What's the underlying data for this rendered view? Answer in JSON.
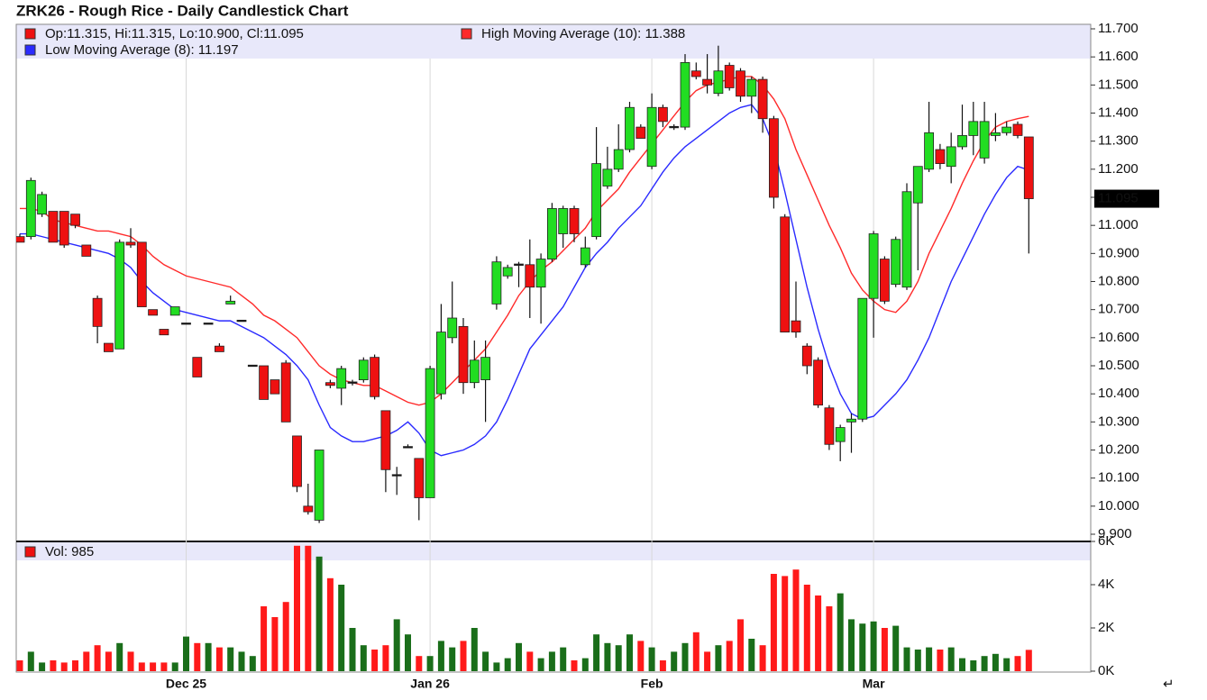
{
  "chart_data": {
    "type": "candlestick",
    "title": "ZRK26 - Rough Rice - Daily Candlestick Chart",
    "ohlc_label": "Op:11.315, Hi:11.315, Lo:10.900, Cl:11.095",
    "categories": [
      null,
      null,
      null,
      null,
      null,
      null,
      null,
      null,
      null,
      null,
      null,
      null,
      null,
      null,
      null,
      "Dec 25",
      null,
      null,
      null,
      null,
      null,
      null,
      null,
      null,
      null,
      null,
      null,
      null,
      null,
      null,
      null,
      null,
      null,
      null,
      null,
      null,
      null,
      "Jan 26",
      null,
      null,
      null,
      null,
      null,
      null,
      null,
      null,
      null,
      null,
      null,
      null,
      null,
      null,
      null,
      null,
      null,
      null,
      null,
      "Feb",
      null,
      null,
      null,
      null,
      null,
      null,
      null,
      null,
      null,
      null,
      null,
      null,
      null,
      null,
      null,
      null,
      null,
      null,
      null,
      "Mar",
      null,
      null,
      null,
      null,
      null,
      null,
      null,
      null,
      null,
      null,
      null,
      null,
      null,
      null
    ],
    "open": [
      10.96,
      10.96,
      11.04,
      11.05,
      11.05,
      11.04,
      10.93,
      10.74,
      10.58,
      10.56,
      10.94,
      10.94,
      10.7,
      10.63,
      10.68,
      10.65,
      10.53,
      10.65,
      10.57,
      10.72,
      10.66,
      10.5,
      10.5,
      10.45,
      10.51,
      10.25,
      10.0,
      9.95,
      10.44,
      10.42,
      10.44,
      10.45,
      10.53,
      10.34,
      10.11,
      10.21,
      10.17,
      10.03,
      10.4,
      10.6,
      10.64,
      10.44,
      10.45,
      10.72,
      10.82,
      10.86,
      10.86,
      10.78,
      10.88,
      10.97,
      11.06,
      10.86,
      10.96,
      11.14,
      11.2,
      11.27,
      11.35,
      11.21,
      11.42,
      11.35,
      11.35,
      11.55,
      11.52,
      11.47,
      11.57,
      11.55,
      11.46,
      11.52,
      11.38,
      11.03,
      10.66,
      10.57,
      10.52,
      10.35,
      10.23,
      10.3,
      10.31,
      10.74,
      10.88,
      10.79,
      10.78,
      11.08,
      11.2,
      11.27,
      11.21,
      11.28,
      11.32,
      11.24,
      11.32,
      11.33,
      11.36,
      11.315
    ],
    "high": [
      10.97,
      11.17,
      11.12,
      11.05,
      11.05,
      11.04,
      10.93,
      10.75,
      10.58,
      10.95,
      10.99,
      10.94,
      10.7,
      10.63,
      10.71,
      10.65,
      10.53,
      10.65,
      10.58,
      10.75,
      10.66,
      10.5,
      10.5,
      10.45,
      10.52,
      10.25,
      10.08,
      10.2,
      10.45,
      10.5,
      10.45,
      10.53,
      10.54,
      10.34,
      10.14,
      10.22,
      10.17,
      10.5,
      10.72,
      10.8,
      10.67,
      10.59,
      10.59,
      10.89,
      10.86,
      10.87,
      10.95,
      10.9,
      11.08,
      11.07,
      11.07,
      10.96,
      11.35,
      11.28,
      11.36,
      11.44,
      11.36,
      11.47,
      11.43,
      11.36,
      11.61,
      11.58,
      11.61,
      11.64,
      11.58,
      11.56,
      11.53,
      11.53,
      11.39,
      11.04,
      10.8,
      10.58,
      10.53,
      10.36,
      10.29,
      10.33,
      10.74,
      10.98,
      10.89,
      10.96,
      11.15,
      11.21,
      11.44,
      11.29,
      11.33,
      11.43,
      11.44,
      11.44,
      11.4,
      11.37,
      11.37,
      11.315
    ],
    "low": [
      10.94,
      10.95,
      11.03,
      10.94,
      10.92,
      10.99,
      10.89,
      10.58,
      10.55,
      10.56,
      10.92,
      10.71,
      10.68,
      10.61,
      10.68,
      10.65,
      10.46,
      10.65,
      10.55,
      10.72,
      10.66,
      10.5,
      10.38,
      10.4,
      10.3,
      10.05,
      9.97,
      9.94,
      10.42,
      10.36,
      10.43,
      10.44,
      10.38,
      10.05,
      10.04,
      10.21,
      9.95,
      10.03,
      10.38,
      10.58,
      10.4,
      10.42,
      10.3,
      10.7,
      10.81,
      10.78,
      10.67,
      10.65,
      10.87,
      10.92,
      10.94,
      10.85,
      10.95,
      11.13,
      11.19,
      11.26,
      11.31,
      11.2,
      11.35,
      11.34,
      11.34,
      11.52,
      11.47,
      11.46,
      11.48,
      11.44,
      11.4,
      11.33,
      11.06,
      10.62,
      10.6,
      10.47,
      10.35,
      10.2,
      10.16,
      10.19,
      10.3,
      10.6,
      10.72,
      10.78,
      10.77,
      10.84,
      11.19,
      11.2,
      11.15,
      11.27,
      11.25,
      11.22,
      11.3,
      11.32,
      11.31,
      10.9
    ],
    "close": [
      10.94,
      11.16,
      11.11,
      10.94,
      10.93,
      11.0,
      10.89,
      10.64,
      10.55,
      10.94,
      10.93,
      10.71,
      10.68,
      10.61,
      10.71,
      10.65,
      10.46,
      10.65,
      10.55,
      10.73,
      10.66,
      10.5,
      10.38,
      10.4,
      10.3,
      10.07,
      9.98,
      10.2,
      10.43,
      10.49,
      10.44,
      10.52,
      10.39,
      10.13,
      10.11,
      10.21,
      10.03,
      10.49,
      10.62,
      10.67,
      10.44,
      10.52,
      10.53,
      10.87,
      10.85,
      10.86,
      10.78,
      10.88,
      11.06,
      11.06,
      10.97,
      10.92,
      11.22,
      11.2,
      11.27,
      11.42,
      11.31,
      11.42,
      11.37,
      11.35,
      11.58,
      11.53,
      11.5,
      11.55,
      11.49,
      11.46,
      11.52,
      11.38,
      11.1,
      10.62,
      10.62,
      10.5,
      10.36,
      10.22,
      10.28,
      10.31,
      10.74,
      10.97,
      10.73,
      10.95,
      11.12,
      11.21,
      11.33,
      11.22,
      11.28,
      11.32,
      11.37,
      11.37,
      11.33,
      11.35,
      11.32,
      11.095
    ],
    "up_color": "#22dd22",
    "down_color": "#ee1111",
    "flat_color": "#000000",
    "series": [
      {
        "name": "High Moving Average (10): 11.388",
        "color": "#ff2a2a",
        "values": [
          11.06,
          11.06,
          11.05,
          11.02,
          11.01,
          11.0,
          10.99,
          10.98,
          10.98,
          10.97,
          10.96,
          10.93,
          10.89,
          10.86,
          10.84,
          10.82,
          10.81,
          10.8,
          10.79,
          10.78,
          10.75,
          10.72,
          10.68,
          10.66,
          10.63,
          10.6,
          10.55,
          10.5,
          10.47,
          10.45,
          10.44,
          10.43,
          10.43,
          10.41,
          10.39,
          10.37,
          10.36,
          10.37,
          10.4,
          10.44,
          10.48,
          10.52,
          10.56,
          10.62,
          10.68,
          10.75,
          10.8,
          10.84,
          10.87,
          10.91,
          10.95,
          10.99,
          11.05,
          11.09,
          11.13,
          11.19,
          11.24,
          11.29,
          11.34,
          11.39,
          11.44,
          11.48,
          11.5,
          11.51,
          11.52,
          11.53,
          11.53,
          11.5,
          11.45,
          11.38,
          11.27,
          11.18,
          11.09,
          11.0,
          10.92,
          10.83,
          10.77,
          10.73,
          10.7,
          10.69,
          10.73,
          10.8,
          10.9,
          10.98,
          11.06,
          11.15,
          11.23,
          11.3,
          11.35,
          11.37,
          11.38,
          11.388
        ]
      },
      {
        "name": "Low Moving Average (8): 11.197",
        "color": "#2a2aff",
        "values": [
          10.97,
          10.97,
          10.96,
          10.95,
          10.94,
          10.93,
          10.92,
          10.91,
          10.9,
          10.88,
          10.85,
          10.8,
          10.76,
          10.73,
          10.7,
          10.69,
          10.68,
          10.67,
          10.66,
          10.66,
          10.64,
          10.62,
          10.6,
          10.57,
          10.54,
          10.5,
          10.45,
          10.36,
          10.28,
          10.25,
          10.23,
          10.23,
          10.24,
          10.25,
          10.27,
          10.3,
          10.26,
          10.2,
          10.18,
          10.19,
          10.2,
          10.22,
          10.25,
          10.3,
          10.38,
          10.47,
          10.56,
          10.61,
          10.66,
          10.71,
          10.78,
          10.85,
          10.9,
          10.94,
          10.99,
          11.03,
          11.07,
          11.13,
          11.19,
          11.24,
          11.28,
          11.31,
          11.34,
          11.37,
          11.4,
          11.42,
          11.43,
          11.38,
          11.28,
          11.12,
          10.95,
          10.78,
          10.63,
          10.5,
          10.4,
          10.33,
          10.31,
          10.32,
          10.36,
          10.4,
          10.45,
          10.52,
          10.6,
          10.7,
          10.8,
          10.88,
          10.96,
          11.04,
          11.11,
          11.17,
          11.21,
          11.197
        ]
      }
    ],
    "ylim": [
      9.9,
      11.7
    ],
    "yticks": [
      {
        "value": 9.9,
        "label": "9.900"
      },
      {
        "value": 10.0,
        "label": "10.000"
      },
      {
        "value": 10.1,
        "label": "10.100"
      },
      {
        "value": 10.2,
        "label": "10.200"
      },
      {
        "value": 10.3,
        "label": "10.300"
      },
      {
        "value": 10.4,
        "label": "10.400"
      },
      {
        "value": 10.5,
        "label": "10.500"
      },
      {
        "value": 10.6,
        "label": "10.600"
      },
      {
        "value": 10.7,
        "label": "10.700"
      },
      {
        "value": 10.8,
        "label": "10.800"
      },
      {
        "value": 10.9,
        "label": "10.900"
      },
      {
        "value": 11.0,
        "label": "11.000"
      },
      {
        "value": 11.1,
        "label": "11.100"
      },
      {
        "value": 11.2,
        "label": "11.200"
      },
      {
        "value": 11.3,
        "label": "11.300"
      },
      {
        "value": 11.4,
        "label": "11.400"
      },
      {
        "value": 11.5,
        "label": "11.500"
      },
      {
        "value": 11.6,
        "label": "11.600"
      },
      {
        "value": 11.7,
        "label": "11.700"
      }
    ],
    "grid": "x",
    "volume": {
      "name": "Vol: 985",
      "up_color": "#1a6e1a",
      "down_color": "#ff1a1a",
      "values": [
        500,
        900,
        400,
        500,
        400,
        500,
        900,
        1200,
        900,
        1300,
        900,
        400,
        400,
        400,
        400,
        1600,
        1300,
        1300,
        1100,
        1100,
        900,
        700,
        3000,
        2500,
        3200,
        5800,
        5800,
        5300,
        4300,
        4000,
        2000,
        1200,
        1000,
        1200,
        2400,
        1700,
        700,
        700,
        1400,
        1100,
        1400,
        2000,
        900,
        400,
        600,
        1300,
        900,
        600,
        900,
        1100,
        500,
        600,
        1700,
        1300,
        1200,
        1700,
        1400,
        1100,
        500,
        900,
        1300,
        1800,
        900,
        1200,
        1400,
        2400,
        1500,
        1200,
        4500,
        4400,
        4700,
        4000,
        3500,
        3000,
        3600,
        2400,
        2200,
        2300,
        2000,
        2100,
        1100,
        1000,
        1100,
        1000,
        1100,
        600,
        500,
        700,
        800,
        600,
        700,
        985
      ],
      "ylim": [
        0,
        6000
      ],
      "yticks": [
        {
          "value": 0,
          "label": "0K"
        },
        {
          "value": 2000,
          "label": "2K"
        },
        {
          "value": 4000,
          "label": "4K"
        },
        {
          "value": 6000,
          "label": "6K"
        }
      ]
    }
  }
}
